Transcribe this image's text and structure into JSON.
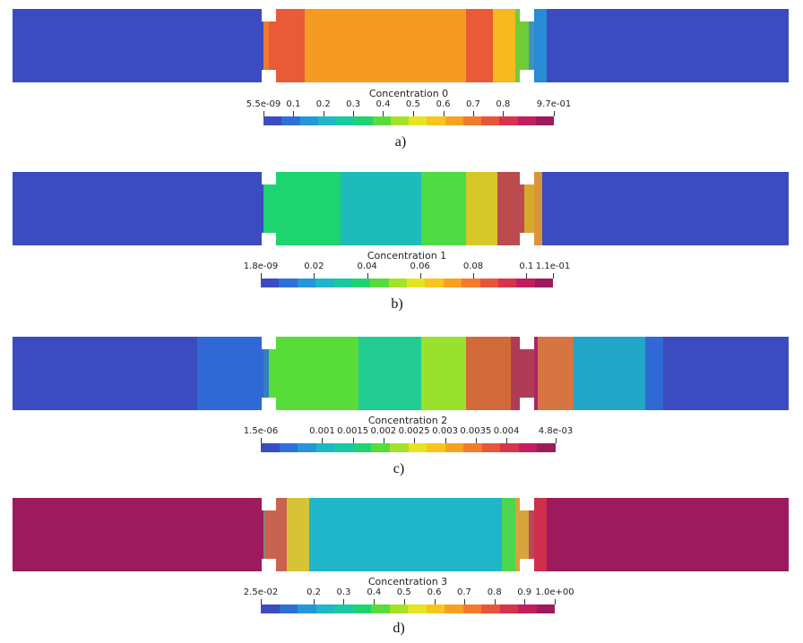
{
  "colormap": [
    "#3b4cc0",
    "#2f6fd8",
    "#2596d8",
    "#1fb6c8",
    "#19c9a2",
    "#1fd370",
    "#57dc3b",
    "#a4e22a",
    "#e5e51f",
    "#f7c51c",
    "#f7a121",
    "#f27b2b",
    "#e8553a",
    "#d8334a",
    "#c01e5c",
    "#9b1b5c"
  ],
  "panels": [
    {
      "id": "a",
      "sublabel": "a)",
      "title": "Concentration 0",
      "ticks": [
        "5.5e-09",
        "0.1",
        "0.2",
        "0.3",
        "0.4",
        "0.5",
        "0.6",
        "0.7",
        "0.8",
        "9.7e-01"
      ],
      "tick_fractions": [
        0,
        0.103,
        0.206,
        0.309,
        0.412,
        0.515,
        0.619,
        0.722,
        0.825,
        1
      ],
      "outer_value": 0.0,
      "center_value": 0.72
    },
    {
      "id": "b",
      "sublabel": "b)",
      "title": "Concentration 1",
      "ticks": [
        "1.8e-09",
        "0.02",
        "0.04",
        "0.06",
        "0.08",
        "0.1",
        "1.1e-01"
      ],
      "tick_fractions": [
        0,
        0.182,
        0.364,
        0.545,
        0.727,
        0.909,
        1
      ],
      "outer_value": 0.0,
      "center_value": 0.35
    },
    {
      "id": "c",
      "sublabel": "c)",
      "title": "Concentration 2",
      "ticks": [
        "1.5e-06",
        "0.001",
        "0.0015",
        "0.002",
        "0.0025",
        "0.003",
        "0.0035",
        "0.004",
        "4.8e-03"
      ],
      "tick_fractions": [
        0,
        0.208,
        0.312,
        0.416,
        0.52,
        0.625,
        0.729,
        0.833,
        1
      ],
      "outer_value": 0.05,
      "center_value": 0.4
    },
    {
      "id": "d",
      "sublabel": "d)",
      "title": "Concentration 3",
      "ticks": [
        "2.5e-02",
        "0.2",
        "0.3",
        "0.4",
        "0.5",
        "0.6",
        "0.7",
        "0.8",
        "0.9",
        "1.0e+00"
      ],
      "tick_fractions": [
        0,
        0.18,
        0.282,
        0.385,
        0.487,
        0.59,
        0.692,
        0.795,
        0.897,
        1
      ],
      "outer_value": 1.0,
      "center_value": 0.22
    }
  ]
}
